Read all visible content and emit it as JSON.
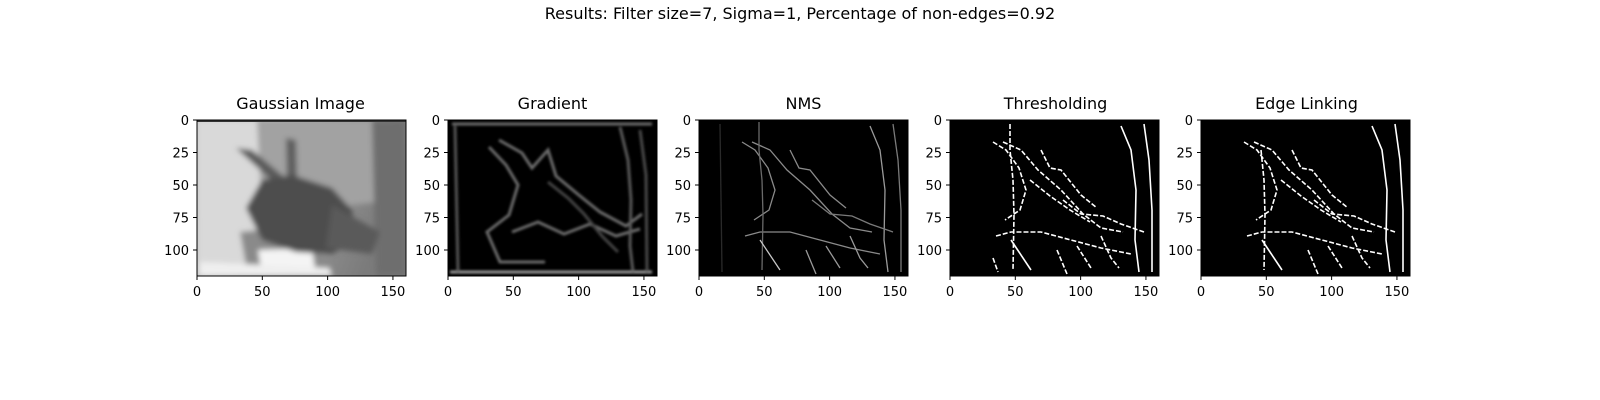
{
  "figure": {
    "suptitle": "Results: Filter size=7, Sigma=1, Percentage of non-edges=0.92"
  },
  "chart_data": [
    {
      "type": "heatmap",
      "title": "Gaussian Image",
      "xlim": [
        0,
        160
      ],
      "ylim": [
        120,
        0
      ],
      "xticks": [
        0,
        50,
        100,
        150
      ],
      "yticks": [
        0,
        25,
        50,
        75,
        100
      ],
      "grid": false
    },
    {
      "type": "heatmap",
      "title": "Gradient",
      "xlim": [
        0,
        160
      ],
      "ylim": [
        120,
        0
      ],
      "xticks": [
        0,
        50,
        100,
        150
      ],
      "yticks": [
        0,
        25,
        50,
        75,
        100
      ],
      "grid": false
    },
    {
      "type": "heatmap",
      "title": "NMS",
      "xlim": [
        0,
        160
      ],
      "ylim": [
        120,
        0
      ],
      "xticks": [
        0,
        50,
        100,
        150
      ],
      "yticks": [
        0,
        25,
        50,
        75,
        100
      ],
      "grid": false
    },
    {
      "type": "heatmap",
      "title": "Thresholding",
      "xlim": [
        0,
        160
      ],
      "ylim": [
        120,
        0
      ],
      "xticks": [
        0,
        50,
        100,
        150
      ],
      "yticks": [
        0,
        25,
        50,
        75,
        100
      ],
      "grid": false
    },
    {
      "type": "heatmap",
      "title": "Edge Linking",
      "xlim": [
        0,
        160
      ],
      "ylim": [
        120,
        0
      ],
      "xticks": [
        0,
        50,
        100,
        150
      ],
      "yticks": [
        0,
        25,
        50,
        75,
        100
      ],
      "grid": false
    }
  ]
}
